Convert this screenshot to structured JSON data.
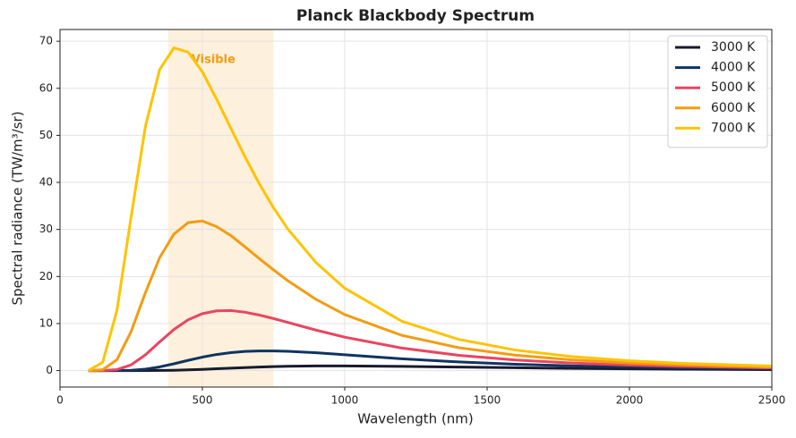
{
  "chart_data": {
    "type": "line",
    "title": "Planck Blackbody Spectrum",
    "x_label": "Wavelength (nm)",
    "y_label": "Spectral radiance (TW/m³/sr)",
    "x": [
      100,
      150,
      200,
      250,
      300,
      350,
      400,
      450,
      500,
      550,
      600,
      650,
      700,
      750,
      800,
      900,
      1000,
      1200,
      1400,
      1600,
      1800,
      2000,
      2200,
      2500
    ],
    "series": [
      {
        "name": "3000 K",
        "color": "#1a1a2e",
        "values": [
          0,
          0,
          0,
          0,
          0.01,
          0.03,
          0.07,
          0.15,
          0.26,
          0.39,
          0.52,
          0.64,
          0.75,
          0.84,
          0.91,
          0.98,
          0.99,
          0.9,
          0.74,
          0.6,
          0.47,
          0.37,
          0.29,
          0.21
        ]
      },
      {
        "name": "4000 K",
        "color": "#0f3460",
        "values": [
          0,
          0,
          0.01,
          0.07,
          0.3,
          0.78,
          1.44,
          2.18,
          2.86,
          3.42,
          3.82,
          4.07,
          4.18,
          4.18,
          4.1,
          3.78,
          3.36,
          2.51,
          1.84,
          1.34,
          0.99,
          0.74,
          0.56,
          0.38
        ]
      },
      {
        "name": "5000 K",
        "color": "#e94560",
        "values": [
          0,
          0.01,
          0.21,
          1.22,
          3.34,
          6.09,
          8.74,
          10.8,
          12.1,
          12.7,
          12.76,
          12.4,
          11.8,
          11.06,
          10.24,
          8.59,
          7.1,
          4.79,
          3.25,
          2.25,
          1.6,
          1.16,
          0.86,
          0.56
        ]
      },
      {
        "name": "6000 K",
        "color": "#f39c12",
        "values": [
          0,
          0.18,
          2.31,
          8.32,
          16.56,
          24.0,
          29.0,
          31.45,
          31.8,
          30.6,
          28.7,
          26.3,
          23.8,
          21.4,
          19.1,
          15.1,
          11.9,
          7.5,
          4.87,
          3.27,
          2.26,
          1.61,
          1.17,
          0.76
        ]
      },
      {
        "name": "7000 K",
        "color": "#ffc300",
        "values": [
          0.01,
          1.75,
          12.79,
          32.77,
          51.91,
          64.0,
          68.6,
          67.7,
          63.5,
          57.7,
          51.5,
          45.4,
          39.7,
          34.6,
          30.1,
          22.9,
          17.5,
          10.5,
          6.63,
          4.35,
          2.95,
          2.07,
          1.5,
          0.96
        ]
      }
    ],
    "band": {
      "label": "Visible",
      "range": [
        380,
        750
      ],
      "color": "#fdf0dc",
      "label_color": "#f39c12"
    },
    "xlim": [
      0,
      2500
    ],
    "xticks": [
      0,
      500,
      1000,
      1500,
      2000,
      2500
    ],
    "ylim": [
      -3.5,
      72.5
    ],
    "yticks": [
      0,
      10,
      20,
      30,
      40,
      50,
      60,
      70
    ],
    "grid": true,
    "legend": "upper-right"
  }
}
